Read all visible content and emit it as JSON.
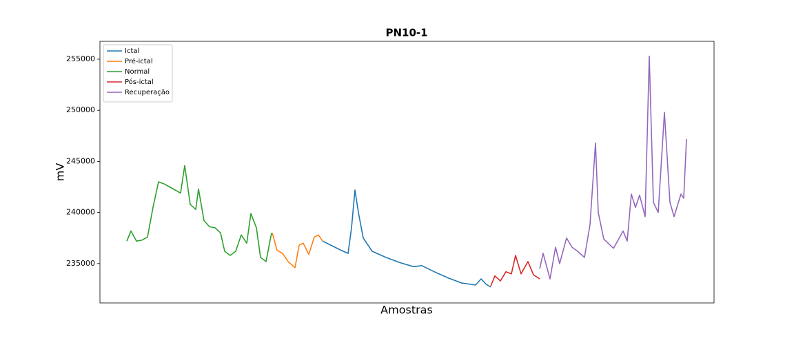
{
  "chart_data": {
    "type": "line",
    "title": "PN10-1",
    "x_label": "Amostras",
    "y_label": "mV",
    "xlim": [
      -39,
      852
    ],
    "ylim": [
      231150,
      256750
    ],
    "yticks": [
      235000,
      240000,
      245000,
      250000,
      255000
    ],
    "legend": "upper left",
    "series": [
      {
        "name": "Ictal",
        "color": "#1f77b4",
        "x": [
          284,
          296,
          311,
          321,
          326,
          331,
          336,
          343,
          356,
          376,
          396,
          416,
          428,
          446,
          466,
          486,
          506,
          514,
          521,
          528
        ],
        "values": [
          237200,
          236800,
          236300,
          236000,
          238500,
          242200,
          240000,
          237500,
          236200,
          235600,
          235100,
          234700,
          234800,
          234200,
          233600,
          233100,
          232900,
          233500,
          233000,
          232700
        ]
      },
      {
        "name": "Pré-ictal",
        "color": "#ff7f0e",
        "x": [
          211,
          218,
          226,
          234,
          244,
          250,
          256,
          264,
          272,
          278,
          284
        ],
        "values": [
          238000,
          236300,
          236000,
          235200,
          234600,
          236800,
          237000,
          235900,
          237600,
          237800,
          237200
        ]
      },
      {
        "name": "Normal",
        "color": "#2ca02c",
        "x": [
          0,
          6,
          14,
          22,
          30,
          38,
          46,
          54,
          62,
          70,
          78,
          84,
          92,
          100,
          104,
          112,
          120,
          128,
          136,
          142,
          150,
          158,
          166,
          174,
          180,
          188,
          194,
          202,
          210
        ],
        "values": [
          237200,
          238200,
          237200,
          237300,
          237600,
          240500,
          243000,
          242800,
          242500,
          242200,
          241900,
          244600,
          240800,
          240300,
          242300,
          239200,
          238600,
          238500,
          238000,
          236200,
          235800,
          236200,
          237800,
          237000,
          239900,
          238500,
          235600,
          235200,
          238000
        ]
      },
      {
        "name": "Pós-ictal",
        "color": "#d62728",
        "x": [
          528,
          534,
          542,
          550,
          558,
          564,
          572,
          582,
          590,
          599
        ],
        "values": [
          232800,
          233800,
          233300,
          234200,
          234000,
          235800,
          234000,
          235200,
          233900,
          233500
        ]
      },
      {
        "name": "Recuperação",
        "color": "#9467bd",
        "x": [
          599,
          604,
          614,
          622,
          628,
          638,
          646,
          654,
          664,
          672,
          680,
          684,
          692,
          706,
          712,
          720,
          726,
          732,
          738,
          744,
          752,
          758,
          764,
          771,
          780,
          788,
          794,
          804,
          808,
          812
        ],
        "values": [
          234500,
          236000,
          233500,
          236600,
          235000,
          237500,
          236600,
          236200,
          235600,
          238800,
          246800,
          240000,
          237400,
          236500,
          237200,
          238200,
          237200,
          241800,
          240500,
          241700,
          239600,
          255300,
          241000,
          240000,
          249800,
          241000,
          239600,
          241800,
          241400,
          247200
        ]
      }
    ]
  }
}
